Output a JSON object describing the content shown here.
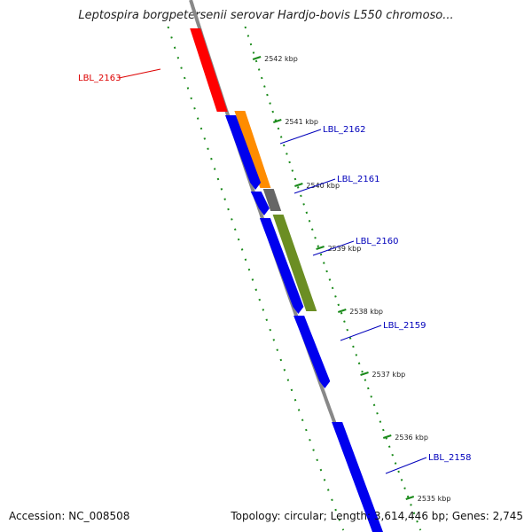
{
  "title": "Leptospira borgpetersenii serovar Hardjo-bovis L550 chromoso...",
  "footer": {
    "accession": "Accession: NC_008508",
    "topology": "Topology: circular; Length: 3,614,446 bp; Genes: 2,745"
  },
  "colors": {
    "backbone": "#888888",
    "ruler": "#1a8a1a",
    "blue": "#0000ee",
    "red": "#ff0000",
    "orange": "#ff8c00",
    "gray": "#666666",
    "olive": "#6b8e23",
    "label_blue": "#0000bb",
    "label_red": "#dd0000"
  },
  "ticks": [
    {
      "label": "2542 kbp"
    },
    {
      "label": "2541 kbp"
    },
    {
      "label": "2540 kbp"
    },
    {
      "label": "2539 kbp"
    },
    {
      "label": "2538 kbp"
    },
    {
      "label": "2537 kbp"
    },
    {
      "label": "2536 kbp"
    },
    {
      "label": "2535 kbp"
    }
  ],
  "genes": [
    {
      "label": "LBL_2163",
      "color": "red"
    },
    {
      "label": "LBL_2162",
      "color": "orange"
    },
    {
      "label": "LBL_2161",
      "color": "gray"
    },
    {
      "label": "LBL_2160",
      "color": "olive"
    },
    {
      "label": "LBL_2159",
      "color": "blue"
    },
    {
      "label": "LBL_2158",
      "color": "blue"
    }
  ]
}
